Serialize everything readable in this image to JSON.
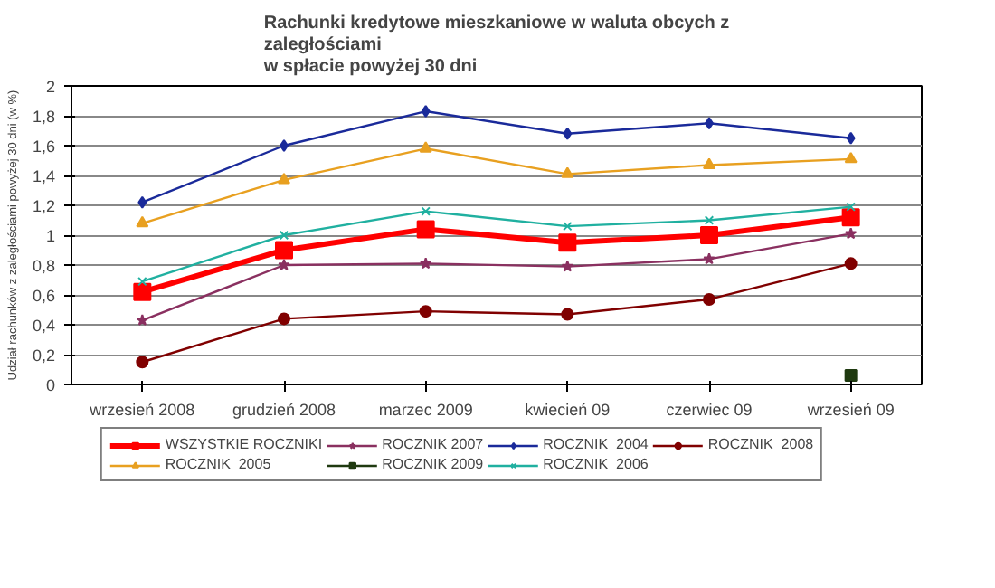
{
  "chart_data": {
    "type": "line",
    "title": "Rachunki kredytowe mieszkaniowe w waluta obcych z\nzaległościami\nw spłacie powyżej 30 dni",
    "ylabel": "Udział rachunków z zaległościami powyżej 30 dni (w %)",
    "categories": [
      "wrzesień 2008",
      "grudzień 2008",
      "marzec 2009",
      "kwiecień 09",
      "czerwiec 09",
      "wrzesień 09"
    ],
    "ylim": [
      0,
      2
    ],
    "yticks": [
      0,
      {
        "value": 0.2,
        "label": "0,2"
      },
      {
        "value": 0.4,
        "label": "0,4"
      },
      {
        "value": 0.6,
        "label": "0,6"
      },
      {
        "value": 0.8,
        "label": "0,8"
      },
      1,
      {
        "value": 1.2,
        "label": "1,2"
      },
      {
        "value": 1.4,
        "label": "1,4"
      },
      {
        "value": 1.6,
        "label": "1,6"
      },
      {
        "value": 1.8,
        "label": "1,8"
      },
      2
    ],
    "grid": "y",
    "legend": "bottom",
    "series": [
      {
        "name": "WSZYSTKIE ROCZNIKI",
        "color": "#ff0000",
        "marker": "square",
        "values": [
          0.62,
          0.9,
          1.04,
          0.95,
          1.0,
          1.12
        ]
      },
      {
        "name": "ROCZNIK  2004",
        "color": "#1a2a9a",
        "marker": "diamond",
        "values": [
          1.22,
          1.6,
          1.83,
          1.68,
          1.75,
          1.65
        ]
      },
      {
        "name": "ROCZNIK  2005",
        "color": "#e8a020",
        "marker": "triangle",
        "values": [
          1.08,
          1.37,
          1.58,
          1.41,
          1.47,
          1.51
        ]
      },
      {
        "name": "ROCZNIK  2006",
        "color": "#20b0a0",
        "marker": "cross",
        "values": [
          0.69,
          1.0,
          1.16,
          1.06,
          1.1,
          1.19
        ]
      },
      {
        "name": "ROCZNIK 2007",
        "color": "#8a3060",
        "marker": "star",
        "values": [
          0.43,
          0.8,
          0.81,
          0.79,
          0.84,
          1.01
        ]
      },
      {
        "name": "ROCZNIK  2008",
        "color": "#800000",
        "marker": "circle",
        "values": [
          0.15,
          0.44,
          0.49,
          0.47,
          0.57,
          0.81
        ]
      },
      {
        "name": "ROCZNIK 2009",
        "color": "#1f3a10",
        "marker": "square",
        "values": [
          null,
          null,
          null,
          null,
          null,
          0.06
        ]
      }
    ]
  }
}
